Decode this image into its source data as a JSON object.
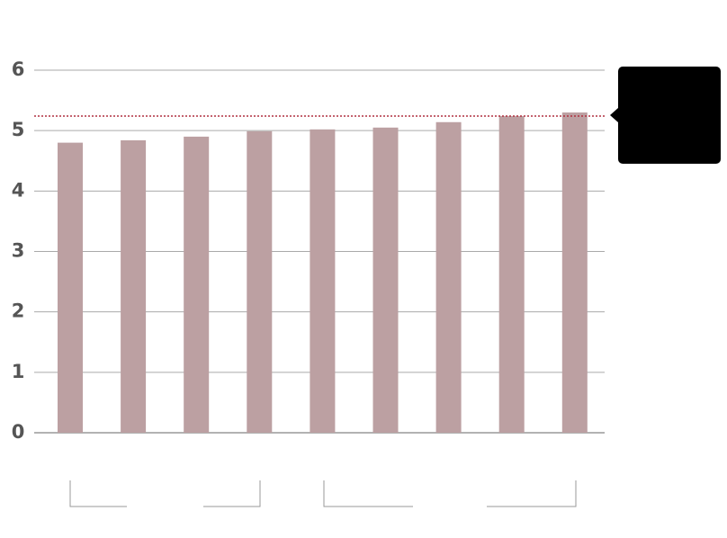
{
  "chart_data": {
    "type": "bar",
    "categories": [
      null,
      null,
      null,
      null,
      null,
      null,
      null,
      null,
      null
    ],
    "values": [
      4.8,
      4.84,
      4.9,
      4.99,
      5.02,
      5.05,
      5.14,
      5.24,
      5.3
    ],
    "color": "#bca0a2",
    "reference_line": 5.24,
    "reference_color": "#b03040",
    "ylim": [
      0,
      6
    ],
    "yticks": [
      0,
      1,
      2,
      3,
      4,
      5,
      6
    ],
    "grid": true
  }
}
